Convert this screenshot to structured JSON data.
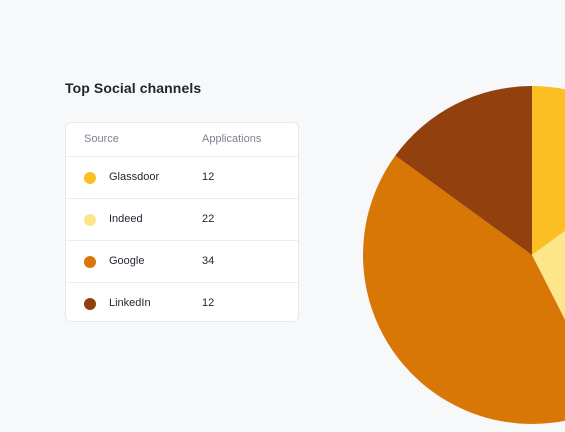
{
  "widget": {
    "title": "Top Social channels",
    "columns": {
      "source": "Source",
      "applications": "Applications"
    },
    "rows": [
      {
        "source": "Glassdoor",
        "applications": "12",
        "color": "#fbbf24"
      },
      {
        "source": "Indeed",
        "applications": "22",
        "color": "#fde68a"
      },
      {
        "source": "Google",
        "applications": "34",
        "color": "#d97706"
      },
      {
        "source": "LinkedIn",
        "applications": "12",
        "color": "#92400e"
      }
    ]
  },
  "chart_data": {
    "type": "pie",
    "categories": [
      "Glassdoor",
      "Indeed",
      "Google",
      "LinkedIn"
    ],
    "values": [
      12,
      22,
      34,
      12
    ],
    "colors": [
      "#fbbf24",
      "#fde68a",
      "#d97706",
      "#92400e"
    ]
  }
}
